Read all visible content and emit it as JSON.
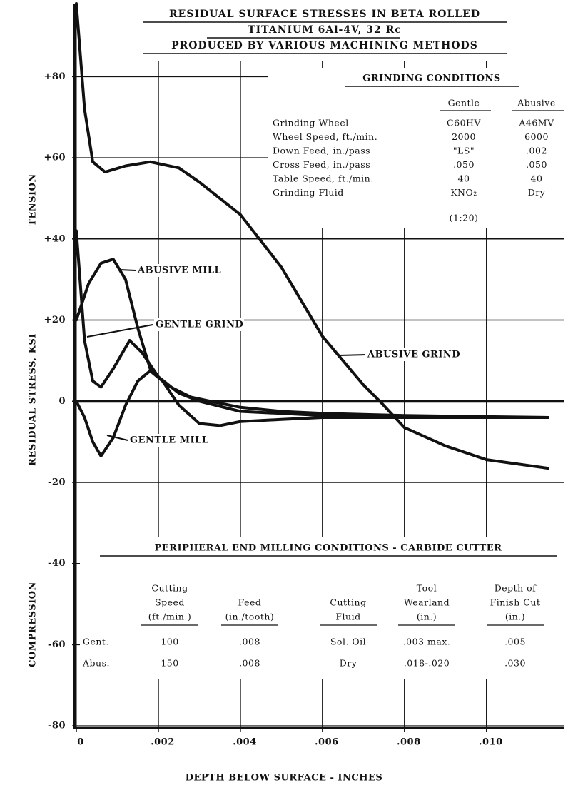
{
  "chart_data": {
    "type": "line",
    "title": [
      "RESIDUAL SURFACE STRESSES IN BETA ROLLED",
      "TITANIUM 6Al-4V, 32 Rc",
      "PRODUCED BY VARIOUS MACHINING METHODS"
    ],
    "x_label": "DEPTH BELOW SURFACE - INCHES",
    "y_label": "RESIDUAL STRESS, KSI",
    "y_annotations": [
      "TENSION",
      "COMPRESSION"
    ],
    "xlim": [
      0,
      0.0119
    ],
    "ylim": [
      -80.5,
      98
    ],
    "xticks": [
      0,
      {
        "value": 0.002,
        "label": ".002"
      },
      {
        "value": 0.004,
        "label": ".004"
      },
      {
        "value": 0.006,
        "label": ".006"
      },
      {
        "value": 0.008,
        "label": ".008"
      },
      {
        "value": 0.01,
        "label": ".010"
      }
    ],
    "yticks": [
      {
        "value": 80,
        "label": "+80"
      },
      {
        "value": 60,
        "label": "+60"
      },
      {
        "value": 40,
        "label": "+40"
      },
      {
        "value": 20,
        "label": "+20"
      },
      0,
      -20,
      -40,
      -60,
      -80
    ],
    "grid": true,
    "series": [
      {
        "name": "ABUSIVE GRIND",
        "color": "#111111",
        "x": [
          0,
          0.0002,
          0.0004,
          0.0007,
          0.0012,
          0.0018,
          0.0025,
          0.003,
          0.004,
          0.005,
          0.006,
          0.007,
          0.0074,
          0.008,
          0.009,
          0.01,
          0.0115
        ],
        "values": [
          98,
          72,
          59,
          56.5,
          58,
          59,
          57.5,
          54,
          46,
          33,
          16,
          4,
          0,
          -6.5,
          -11,
          -14.4,
          -16.5
        ]
      },
      {
        "name": "ABUSIVE MILL",
        "color": "#111111",
        "x": [
          0,
          0.0003,
          0.0006,
          0.0009,
          0.0012,
          0.0015,
          0.0018,
          0.0022,
          0.0028,
          0.0035,
          0.004,
          0.005,
          0.006,
          0.008,
          0.01,
          0.0115
        ],
        "values": [
          20,
          29,
          34,
          35,
          30,
          18,
          8,
          4,
          1,
          -0.5,
          -1.5,
          -2.5,
          -3,
          -3.5,
          -3.8,
          -4
        ]
      },
      {
        "name": "GENTLE GRIND",
        "color": "#111111",
        "x": [
          0,
          0.0002,
          0.0004,
          0.0006,
          0.0009,
          0.0013,
          0.0016,
          0.002,
          0.0025,
          0.003,
          0.004,
          0.005,
          0.006,
          0.008,
          0.01,
          0.0115
        ],
        "values": [
          42,
          15,
          5,
          3.5,
          8,
          15,
          12,
          6,
          2,
          0,
          -2.5,
          -3,
          -3.5,
          -3.8,
          -4,
          -4
        ]
      },
      {
        "name": "GENTLE MILL",
        "color": "#111111",
        "x": [
          0,
          0.0002,
          0.0004,
          0.0006,
          0.0009,
          0.0012,
          0.0015,
          0.0018,
          0.0021,
          0.0025,
          0.003,
          0.0035,
          0.004,
          0.005,
          0.006,
          0.008,
          0.01,
          0.0115
        ],
        "values": [
          0,
          -4,
          -10,
          -13.5,
          -9,
          -1,
          5,
          7.5,
          5,
          -1,
          -5.5,
          -6,
          -5,
          -4.5,
          -4,
          -4,
          -4,
          -4
        ]
      }
    ],
    "grinding_conditions": {
      "title": "GRINDING CONDITIONS",
      "columns": [
        "Gentle",
        "Abusive"
      ],
      "rows": [
        {
          "label": "Grinding Wheel",
          "values": [
            "C60HV",
            "A46MV"
          ]
        },
        {
          "label": "Wheel Speed, ft./min.",
          "values": [
            "2000",
            "6000"
          ]
        },
        {
          "label": "Down Feed, in./pass",
          "values": [
            "\"LS\"",
            ".002"
          ]
        },
        {
          "label": "Cross Feed, in./pass",
          "values": [
            ".050",
            ".050"
          ]
        },
        {
          "label": "Table Speed, ft./min.",
          "values": [
            "40",
            "40"
          ]
        },
        {
          "label": "Grinding Fluid",
          "values": [
            "KNO₂",
            "Dry"
          ]
        }
      ],
      "fluid_note": "(1:20)"
    },
    "milling_conditions": {
      "title": "PERIPHERAL END MILLING CONDITIONS - CARBIDE CUTTER",
      "columns": [
        [
          "Cutting",
          "Speed",
          "(ft./min.)"
        ],
        [
          "Feed",
          "(in./tooth)"
        ],
        [
          "Cutting",
          "Fluid"
        ],
        [
          "Tool",
          "Wearland",
          "(in.)"
        ],
        [
          "Depth of",
          "Finish Cut",
          "(in.)"
        ]
      ],
      "rows": [
        {
          "label": "Gent.",
          "values": [
            "100",
            ".008",
            "Sol. Oil",
            ".003 max.",
            ".005"
          ]
        },
        {
          "label": "Abus.",
          "values": [
            "150",
            ".008",
            "Dry",
            ".018-.020",
            ".030"
          ]
        }
      ]
    }
  }
}
